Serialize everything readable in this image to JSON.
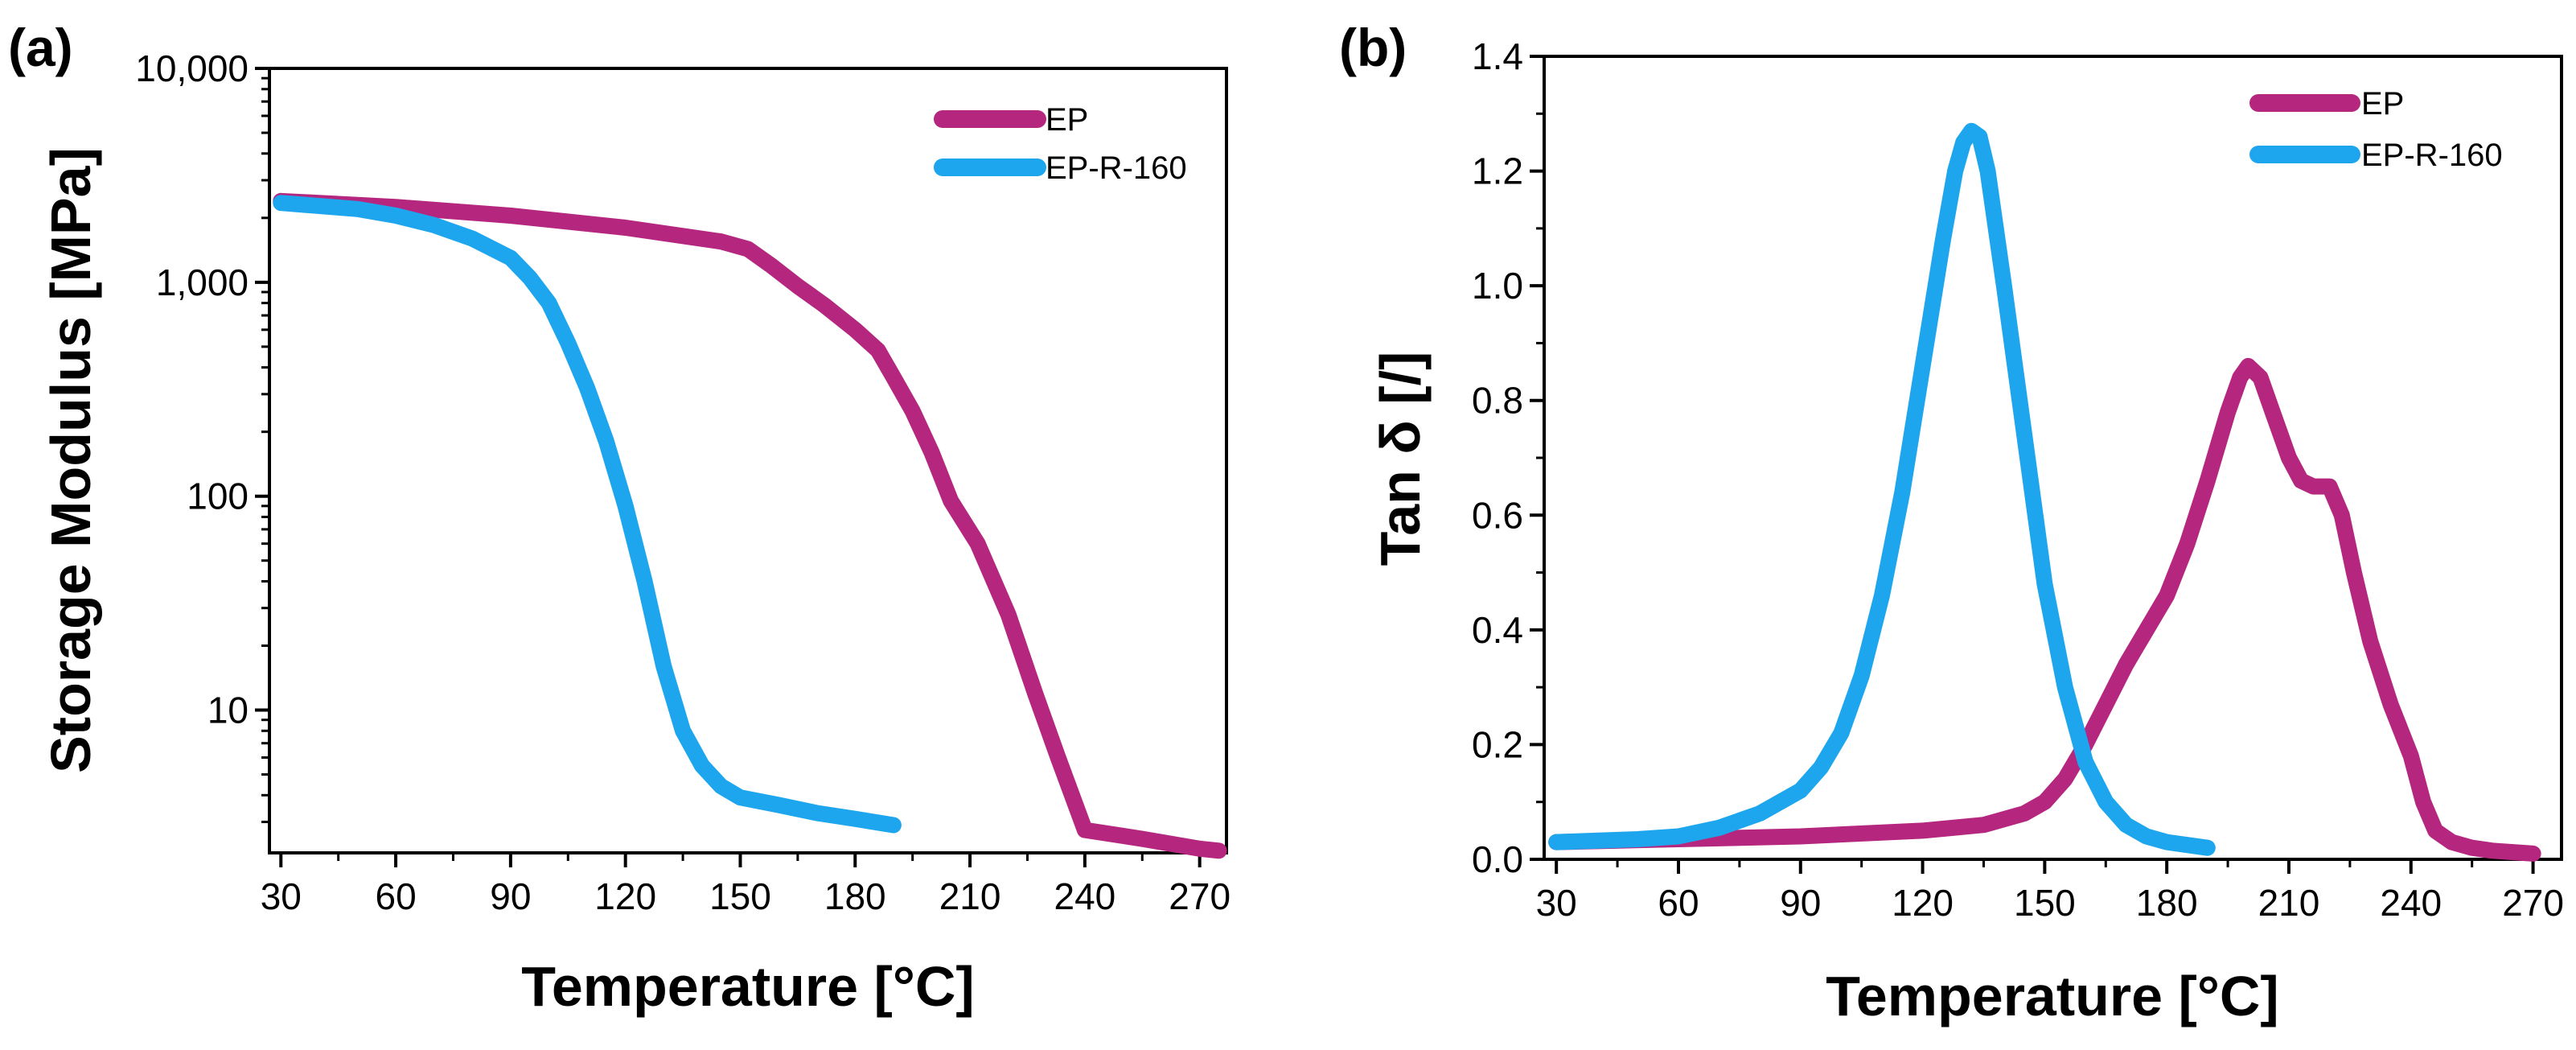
{
  "chart_data": [
    {
      "panel_label": "(a)",
      "type": "line",
      "xlabel": "Temperature [°C]",
      "ylabel": "Storage Modulus [MPa]",
      "yscale": "log",
      "xlim": [
        27,
        277
      ],
      "ylim": [
        2.15,
        10000
      ],
      "xticks": [
        30,
        60,
        90,
        120,
        150,
        180,
        210,
        240,
        270
      ],
      "xtick_labels": [
        "30",
        "60",
        "90",
        "120",
        "150",
        "180",
        "210",
        "240",
        "270"
      ],
      "yticks": [
        10,
        100,
        1000,
        10000
      ],
      "ytick_labels": [
        "10",
        "100",
        "1,000",
        "10,000"
      ],
      "legend_position": "top-right",
      "series": [
        {
          "name": "EP",
          "color": "#B5267E",
          "x": [
            30,
            60,
            90,
            120,
            145,
            152,
            158,
            165,
            172,
            180,
            186,
            190,
            195,
            200,
            205,
            212,
            220,
            227,
            233,
            240,
            255,
            270,
            275
          ],
          "y": [
            2400,
            2250,
            2050,
            1800,
            1550,
            1430,
            1200,
            960,
            780,
            600,
            480,
            360,
            250,
            160,
            95,
            60,
            28,
            12,
            6,
            2.75,
            2.5,
            2.25,
            2.2
          ]
        },
        {
          "name": "EP-R-160",
          "color": "#1DA6EE",
          "x": [
            30,
            50,
            60,
            70,
            80,
            90,
            95,
            100,
            105,
            110,
            115,
            120,
            125,
            130,
            135,
            140,
            145,
            150,
            160,
            170,
            180,
            190
          ],
          "y": [
            2350,
            2200,
            2050,
            1850,
            1600,
            1300,
            1050,
            800,
            520,
            320,
            180,
            90,
            40,
            16,
            8,
            5.5,
            4.4,
            3.9,
            3.6,
            3.3,
            3.1,
            2.9
          ]
        }
      ]
    },
    {
      "panel_label": "(b)",
      "type": "line",
      "xlabel": "Temperature [°C]",
      "ylabel": "Tan δ [/]",
      "yscale": "linear",
      "xlim": [
        27,
        277
      ],
      "ylim": [
        0,
        1.4
      ],
      "xticks": [
        30,
        60,
        90,
        120,
        150,
        180,
        210,
        240,
        270
      ],
      "xtick_labels": [
        "30",
        "60",
        "90",
        "120",
        "150",
        "180",
        "210",
        "240",
        "270"
      ],
      "yticks": [
        0,
        0.2,
        0.4,
        0.6,
        0.8,
        1.0,
        1.2,
        1.4
      ],
      "ytick_labels": [
        "0.0",
        "0.2",
        "0.4",
        "0.6",
        "0.8",
        "1.0",
        "1.2",
        "1.4"
      ],
      "legend_position": "top-right",
      "series": [
        {
          "name": "EP",
          "color": "#B5267E",
          "x": [
            30,
            60,
            90,
            120,
            135,
            145,
            150,
            155,
            160,
            165,
            170,
            175,
            180,
            185,
            190,
            195,
            198,
            200,
            203,
            206,
            210,
            213,
            216,
            220,
            223,
            226,
            230,
            235,
            240,
            243,
            246,
            250,
            255,
            260,
            270
          ],
          "y": [
            0.03,
            0.035,
            0.04,
            0.05,
            0.06,
            0.08,
            0.1,
            0.14,
            0.2,
            0.27,
            0.34,
            0.4,
            0.46,
            0.55,
            0.66,
            0.78,
            0.84,
            0.86,
            0.84,
            0.78,
            0.7,
            0.66,
            0.65,
            0.65,
            0.6,
            0.5,
            0.38,
            0.27,
            0.18,
            0.1,
            0.05,
            0.03,
            0.02,
            0.015,
            0.01
          ]
        },
        {
          "name": "EP-R-160",
          "color": "#1DA6EE",
          "x": [
            30,
            50,
            60,
            70,
            80,
            90,
            95,
            100,
            105,
            110,
            115,
            120,
            125,
            128,
            130,
            132,
            134,
            136,
            140,
            145,
            150,
            155,
            160,
            165,
            170,
            175,
            180,
            185,
            190
          ],
          "y": [
            0.03,
            0.035,
            0.04,
            0.055,
            0.08,
            0.12,
            0.16,
            0.22,
            0.32,
            0.46,
            0.64,
            0.86,
            1.08,
            1.2,
            1.25,
            1.27,
            1.26,
            1.2,
            1.0,
            0.74,
            0.48,
            0.3,
            0.17,
            0.1,
            0.06,
            0.04,
            0.03,
            0.025,
            0.02
          ]
        }
      ]
    }
  ]
}
